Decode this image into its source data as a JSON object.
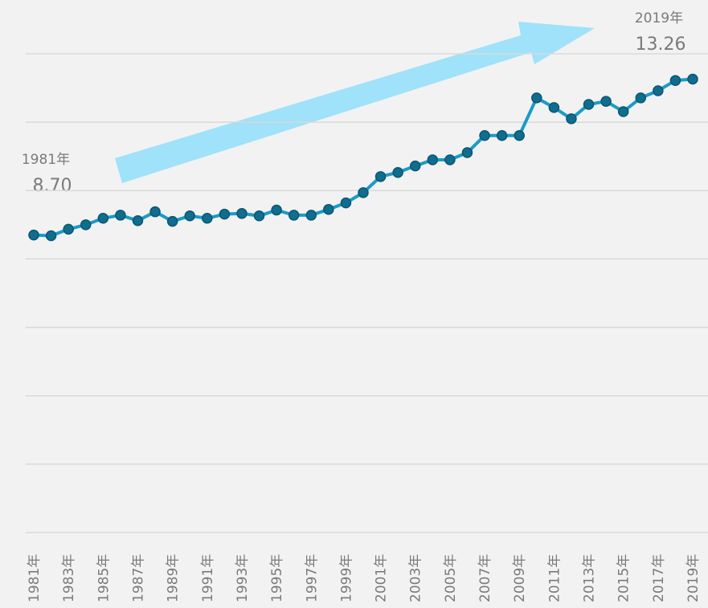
{
  "chart_data": {
    "type": "line",
    "categories": [
      "1981年",
      null,
      "1983年",
      null,
      "1985年",
      null,
      "1987年",
      null,
      "1989年",
      null,
      "1991年",
      null,
      "1993年",
      null,
      "1995年",
      null,
      "1997年",
      null,
      "1999年",
      null,
      "2001年",
      null,
      "2003年",
      null,
      "2005年",
      null,
      "2007年",
      null,
      "2009年",
      null,
      "2011年",
      null,
      "2013年",
      null,
      "2015年",
      null,
      "2017年",
      null,
      "2019年"
    ],
    "series": [
      {
        "color": "#1a9bc9",
        "marker_color": "#0f6e8f",
        "values": [
          8.7,
          8.68,
          8.87,
          9.0,
          9.19,
          9.28,
          9.12,
          9.38,
          9.1,
          9.26,
          9.19,
          9.31,
          9.33,
          9.26,
          9.43,
          9.28,
          9.28,
          9.45,
          9.64,
          9.94,
          10.41,
          10.53,
          10.72,
          10.9,
          10.9,
          11.11,
          11.61,
          11.61,
          11.61,
          12.71,
          12.43,
          12.1,
          12.52,
          12.61,
          12.31,
          12.71,
          12.92,
          13.22,
          13.26
        ]
      }
    ],
    "annotations": [
      {
        "label": "1981年",
        "value_label": "8.70"
      },
      {
        "label": "2019年",
        "value_label": "13.26"
      }
    ],
    "ylim": [
      0,
      14
    ],
    "yticks": [
      0,
      2,
      4,
      6,
      8,
      10,
      12,
      14
    ],
    "grid": true
  }
}
